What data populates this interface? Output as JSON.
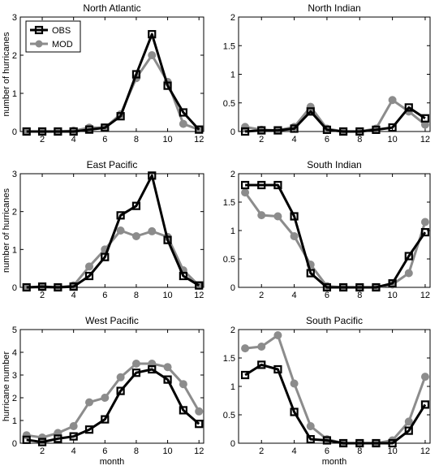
{
  "figure": {
    "colors": {
      "OBS": "#000000",
      "MOD": "#8c8c8c"
    }
  },
  "chart_data": [
    {
      "type": "line",
      "title": "North Atlantic",
      "xlabel": "",
      "ylabel": "number of hurricanes",
      "xlim": [
        0.6,
        12.3
      ],
      "ylim": [
        0,
        3
      ],
      "xticks": [
        "2",
        "4",
        "6",
        "8",
        "10",
        "12"
      ],
      "yticks": [
        "0",
        "1",
        "2",
        "3"
      ],
      "x": [
        1,
        2,
        3,
        4,
        5,
        6,
        7,
        8,
        9,
        10,
        11,
        12
      ],
      "legend": {
        "position": "top-left",
        "entries": [
          "OBS",
          "MOD"
        ]
      },
      "series": [
        {
          "name": "OBS",
          "marker": "square",
          "values": [
            0.0,
            0.0,
            0.0,
            0.0,
            0.05,
            0.1,
            0.4,
            1.5,
            2.55,
            1.2,
            0.5,
            0.05
          ]
        },
        {
          "name": "MOD",
          "marker": "circle",
          "values": [
            0.0,
            0.0,
            0.0,
            0.02,
            0.1,
            0.1,
            0.45,
            1.4,
            2.0,
            1.3,
            0.2,
            0.05
          ]
        }
      ]
    },
    {
      "type": "line",
      "title": "North Indian",
      "xlabel": "",
      "ylabel": "",
      "xlim": [
        0.6,
        12.3
      ],
      "ylim": [
        0,
        2
      ],
      "xticks": [
        "2",
        "4",
        "6",
        "8",
        "10",
        "12"
      ],
      "yticks": [
        "0",
        "0.5",
        "1",
        "1.5",
        "2"
      ],
      "x": [
        1,
        2,
        3,
        4,
        5,
        6,
        7,
        8,
        9,
        10,
        11,
        12
      ],
      "series": [
        {
          "name": "OBS",
          "marker": "square",
          "values": [
            0.0,
            0.02,
            0.02,
            0.05,
            0.35,
            0.03,
            0.0,
            0.0,
            0.03,
            0.07,
            0.42,
            0.23
          ]
        },
        {
          "name": "MOD",
          "marker": "circle",
          "values": [
            0.08,
            0.03,
            0.02,
            0.08,
            0.43,
            0.05,
            0.0,
            0.0,
            0.05,
            0.55,
            0.35,
            0.12
          ]
        }
      ]
    },
    {
      "type": "line",
      "title": "East Pacific",
      "xlabel": "",
      "ylabel": "number of hurricanes",
      "xlim": [
        0.6,
        12.3
      ],
      "ylim": [
        0,
        3
      ],
      "xticks": [
        "2",
        "4",
        "6",
        "8",
        "10",
        "12"
      ],
      "yticks": [
        "0",
        "1",
        "2",
        "3"
      ],
      "x": [
        1,
        2,
        3,
        4,
        5,
        6,
        7,
        8,
        9,
        10,
        11,
        12
      ],
      "series": [
        {
          "name": "OBS",
          "marker": "square",
          "values": [
            0.0,
            0.02,
            0.0,
            0.02,
            0.3,
            0.8,
            1.9,
            2.15,
            2.95,
            1.25,
            0.3,
            0.05
          ]
        },
        {
          "name": "MOD",
          "marker": "circle",
          "values": [
            0.0,
            0.0,
            0.0,
            0.05,
            0.55,
            1.0,
            1.5,
            1.35,
            1.48,
            1.33,
            0.45,
            0.05
          ]
        }
      ]
    },
    {
      "type": "line",
      "title": "South Indian",
      "xlabel": "",
      "ylabel": "",
      "xlim": [
        0.6,
        12.3
      ],
      "ylim": [
        0,
        2
      ],
      "xticks": [
        "2",
        "4",
        "6",
        "8",
        "10",
        "12"
      ],
      "yticks": [
        "0",
        "0.5",
        "1",
        "1.5",
        "2"
      ],
      "x": [
        1,
        2,
        3,
        4,
        5,
        6,
        7,
        8,
        9,
        10,
        11,
        12
      ],
      "series": [
        {
          "name": "OBS",
          "marker": "square",
          "values": [
            1.8,
            1.8,
            1.8,
            1.25,
            0.25,
            0.0,
            0.0,
            0.0,
            0.0,
            0.07,
            0.55,
            0.97
          ]
        },
        {
          "name": "MOD",
          "marker": "circle",
          "values": [
            1.67,
            1.27,
            1.25,
            0.9,
            0.4,
            0.02,
            0.0,
            0.0,
            0.0,
            0.05,
            0.25,
            1.15
          ]
        }
      ]
    },
    {
      "type": "line",
      "title": "West Pacific",
      "xlabel": "month",
      "ylabel": "hurricane number",
      "xlim": [
        0.6,
        12.3
      ],
      "ylim": [
        0,
        5
      ],
      "xticks": [
        "2",
        "4",
        "6",
        "8",
        "10",
        "12"
      ],
      "yticks": [
        "0",
        "1",
        "2",
        "3",
        "4",
        "5"
      ],
      "x": [
        1,
        2,
        3,
        4,
        5,
        6,
        7,
        8,
        9,
        10,
        11,
        12
      ],
      "series": [
        {
          "name": "OBS",
          "marker": "square",
          "values": [
            0.15,
            0.05,
            0.2,
            0.3,
            0.6,
            1.05,
            2.3,
            3.1,
            3.25,
            2.8,
            1.45,
            0.85
          ]
        },
        {
          "name": "MOD",
          "marker": "circle",
          "values": [
            0.35,
            0.25,
            0.45,
            0.75,
            1.8,
            2.0,
            2.9,
            3.5,
            3.5,
            3.35,
            2.6,
            1.4
          ]
        }
      ]
    },
    {
      "type": "line",
      "title": "South Pacific",
      "xlabel": "month",
      "ylabel": "",
      "xlim": [
        0.6,
        12.3
      ],
      "ylim": [
        0,
        2
      ],
      "xticks": [
        "2",
        "4",
        "6",
        "8",
        "10",
        "12"
      ],
      "yticks": [
        "0",
        "0.5",
        "1",
        "1.5",
        "2"
      ],
      "x": [
        1,
        2,
        3,
        4,
        5,
        6,
        7,
        8,
        9,
        10,
        11,
        12
      ],
      "series": [
        {
          "name": "OBS",
          "marker": "square",
          "values": [
            1.2,
            1.38,
            1.3,
            0.55,
            0.07,
            0.05,
            0.0,
            0.0,
            0.0,
            0.0,
            0.22,
            0.68
          ]
        },
        {
          "name": "MOD",
          "marker": "circle",
          "values": [
            1.67,
            1.7,
            1.9,
            1.05,
            0.3,
            0.07,
            0.0,
            0.0,
            0.0,
            0.05,
            0.38,
            1.17
          ]
        }
      ]
    }
  ]
}
